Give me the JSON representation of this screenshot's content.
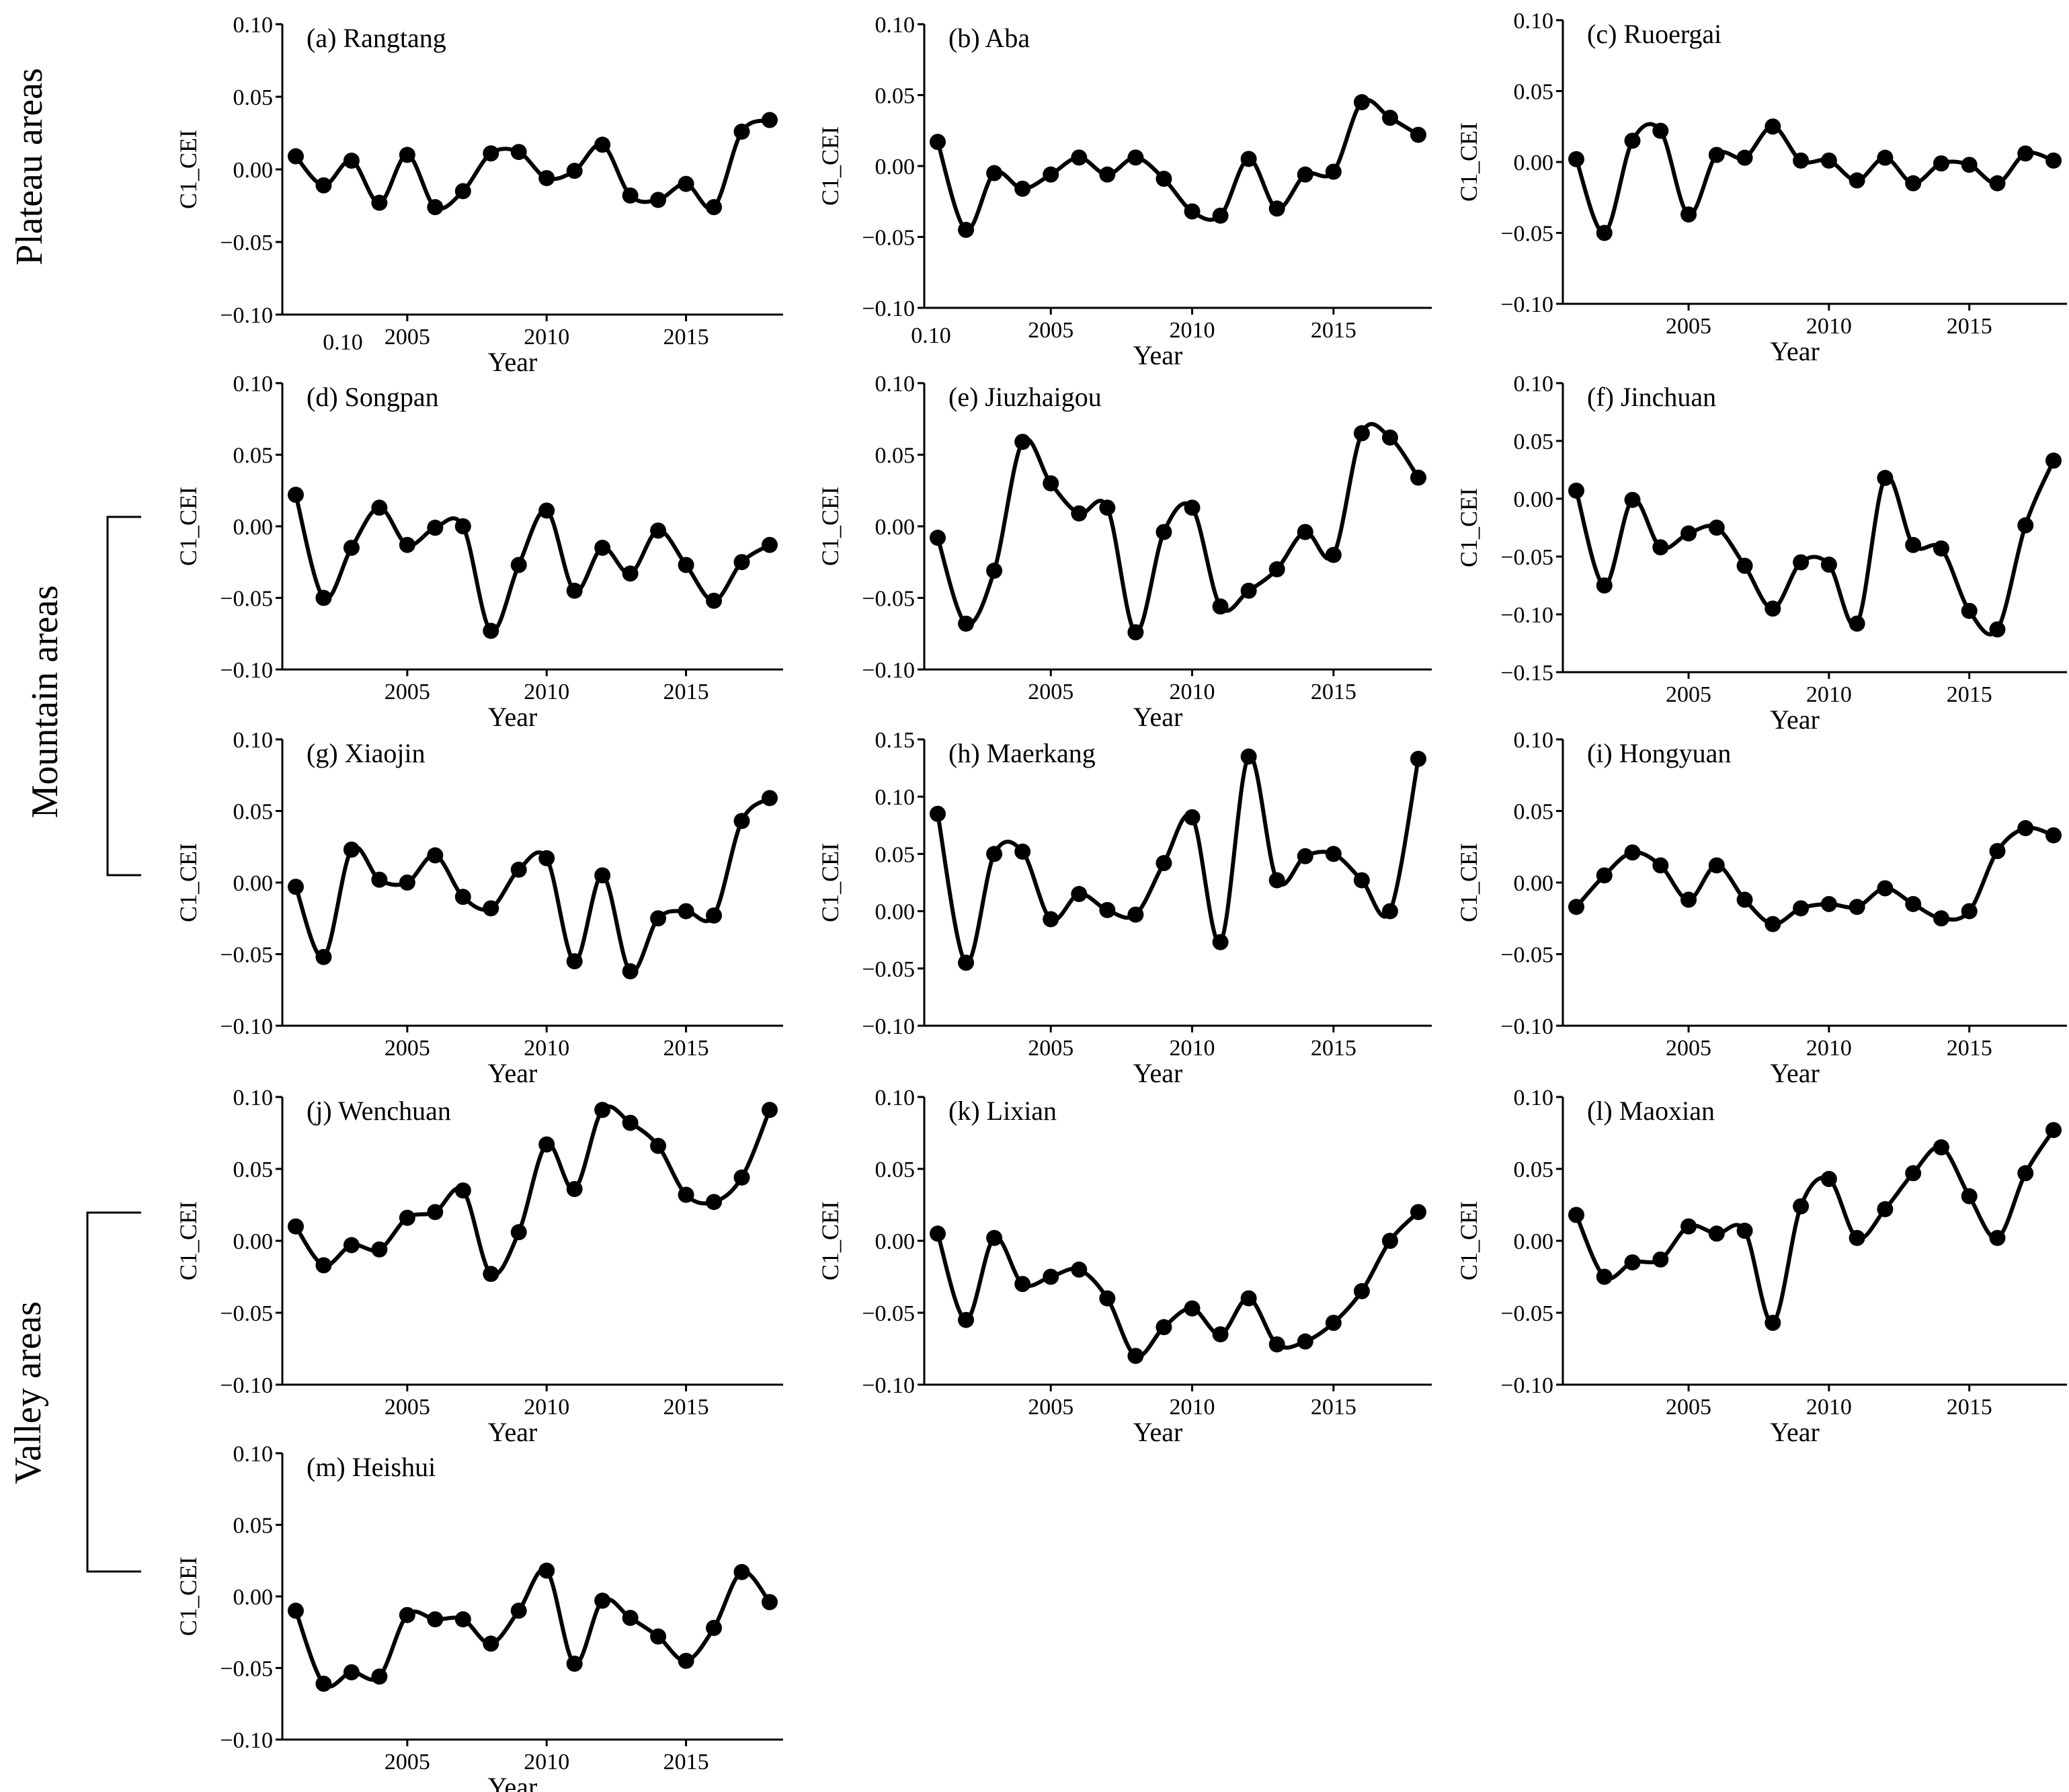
{
  "groups": [
    {
      "label": "Plateau areas"
    },
    {
      "label": "Mountain areas"
    },
    {
      "label": "Valley areas"
    }
  ],
  "chart_data": [
    {
      "type": "line",
      "title": "(a) Rangtang",
      "xlabel": "Year",
      "ylabel": "C1_CEI",
      "xlim": [
        2001,
        2018
      ],
      "ylim": [
        -0.1,
        0.1
      ],
      "yticks": [
        "0.10",
        "0.05",
        "0.00",
        "-0.05",
        "-0.10"
      ],
      "xticks": [
        "2005",
        "2010",
        "2015"
      ],
      "stray_label": "0.10",
      "x": [
        2001,
        2002,
        2003,
        2004,
        2005,
        2006,
        2007,
        2008,
        2009,
        2010,
        2011,
        2012,
        2013,
        2014,
        2015,
        2016,
        2017,
        2018
      ],
      "values": [
        0.009,
        -0.011,
        0.006,
        -0.023,
        0.01,
        -0.026,
        -0.015,
        0.011,
        0.012,
        -0.006,
        -0.001,
        0.017,
        -0.018,
        -0.021,
        -0.01,
        -0.026,
        0.026,
        0.034
      ]
    },
    {
      "type": "line",
      "title": "(b) Aba",
      "xlabel": "Year",
      "ylabel": "C1_CEI",
      "xlim": [
        2001,
        2018
      ],
      "ylim": [
        -0.1,
        0.1
      ],
      "yticks": [
        "0.10",
        "0.05",
        "0.00",
        "-0.05",
        "-0.10"
      ],
      "xticks": [
        "2005",
        "2010",
        "2015"
      ],
      "stray_label": "0.10",
      "x": [
        2001,
        2002,
        2003,
        2004,
        2005,
        2006,
        2007,
        2008,
        2009,
        2010,
        2011,
        2012,
        2013,
        2014,
        2015,
        2016,
        2017,
        2018
      ],
      "values": [
        0.017,
        -0.045,
        -0.005,
        -0.016,
        -0.006,
        0.006,
        -0.006,
        0.006,
        -0.009,
        -0.032,
        -0.035,
        0.005,
        -0.03,
        -0.006,
        -0.004,
        0.045,
        0.034,
        0.022
      ]
    },
    {
      "type": "line",
      "title": "(c) Ruoergai",
      "xlabel": "Year",
      "ylabel": "C1_CEI",
      "xlim": [
        2001,
        2018
      ],
      "ylim": [
        -0.1,
        0.1
      ],
      "yticks": [
        "0.10",
        "0.05",
        "0.00",
        "-0.05",
        "-0.10"
      ],
      "xticks": [
        "2005",
        "2010",
        "2015"
      ],
      "x": [
        2001,
        2002,
        2003,
        2004,
        2005,
        2006,
        2007,
        2008,
        2009,
        2010,
        2011,
        2012,
        2013,
        2014,
        2015,
        2016,
        2017,
        2018
      ],
      "values": [
        0.002,
        -0.05,
        0.015,
        0.022,
        -0.037,
        0.005,
        0.003,
        0.025,
        0.001,
        0.001,
        -0.013,
        0.003,
        -0.015,
        -0.001,
        -0.002,
        -0.015,
        0.006,
        0.001
      ]
    },
    {
      "type": "line",
      "title": "(d) Songpan",
      "xlabel": "Year",
      "ylabel": "C1_CEI",
      "xlim": [
        2001,
        2018
      ],
      "ylim": [
        -0.1,
        0.1
      ],
      "yticks": [
        "0.10",
        "0.05",
        "0.00",
        "-0.05",
        "-0.10"
      ],
      "xticks": [
        "2005",
        "2010",
        "2015"
      ],
      "x": [
        2001,
        2002,
        2003,
        2004,
        2005,
        2006,
        2007,
        2008,
        2009,
        2010,
        2011,
        2012,
        2013,
        2014,
        2015,
        2016,
        2017,
        2018
      ],
      "values": [
        0.022,
        -0.05,
        -0.015,
        0.013,
        -0.013,
        -0.001,
        0.0,
        -0.073,
        -0.027,
        0.011,
        -0.045,
        -0.015,
        -0.033,
        -0.003,
        -0.027,
        -0.052,
        -0.025,
        -0.013
      ]
    },
    {
      "type": "line",
      "title": "(e) Jiuzhaigou",
      "xlabel": "Year",
      "ylabel": "C1_CEI",
      "xlim": [
        2001,
        2018
      ],
      "ylim": [
        -0.1,
        0.1
      ],
      "yticks": [
        "0.10",
        "0.05",
        "0.00",
        "-0.05",
        "-0.10"
      ],
      "xticks": [
        "2005",
        "2010",
        "2015"
      ],
      "x": [
        2001,
        2002,
        2003,
        2004,
        2005,
        2006,
        2007,
        2008,
        2009,
        2010,
        2011,
        2012,
        2013,
        2014,
        2015,
        2016,
        2017,
        2018
      ],
      "values": [
        -0.008,
        -0.068,
        -0.031,
        0.059,
        0.03,
        0.009,
        0.013,
        -0.074,
        -0.004,
        0.013,
        -0.056,
        -0.045,
        -0.03,
        -0.004,
        -0.02,
        0.065,
        0.062,
        0.034
      ]
    },
    {
      "type": "line",
      "title": "(f) Jinchuan",
      "xlabel": "Year",
      "ylabel": "C1_CEI",
      "xlim": [
        2001,
        2018
      ],
      "ylim": [
        -0.15,
        0.1
      ],
      "yticks": [
        "0.10",
        "0.05",
        "0.00",
        "-0.05",
        "-0.10",
        "-0.15"
      ],
      "xticks": [
        "2005",
        "2010",
        "2015"
      ],
      "x": [
        2001,
        2002,
        2003,
        2004,
        2005,
        2006,
        2007,
        2008,
        2009,
        2010,
        2011,
        2012,
        2013,
        2014,
        2015,
        2016,
        2017,
        2018
      ],
      "values": [
        0.007,
        -0.075,
        -0.001,
        -0.042,
        -0.03,
        -0.025,
        -0.058,
        -0.095,
        -0.055,
        -0.057,
        -0.108,
        0.018,
        -0.04,
        -0.043,
        -0.097,
        -0.113,
        -0.023,
        0.033
      ]
    },
    {
      "type": "line",
      "title": "(g) Xiaojin",
      "xlabel": "Year",
      "ylabel": "C1_CEI",
      "xlim": [
        2001,
        2018
      ],
      "ylim": [
        -0.1,
        0.1
      ],
      "yticks": [
        "0.10",
        "0.05",
        "0.00",
        "-0.05",
        "-0.10"
      ],
      "xticks": [
        "2005",
        "2010",
        "2015"
      ],
      "x": [
        2001,
        2002,
        2003,
        2004,
        2005,
        2006,
        2007,
        2008,
        2009,
        2010,
        2011,
        2012,
        2013,
        2014,
        2015,
        2016,
        2017,
        2018
      ],
      "values": [
        -0.003,
        -0.052,
        0.023,
        0.002,
        0.0,
        0.019,
        -0.01,
        -0.018,
        0.009,
        0.017,
        -0.055,
        0.005,
        -0.062,
        -0.025,
        -0.02,
        -0.023,
        0.043,
        0.059
      ]
    },
    {
      "type": "line",
      "title": "(h) Maerkang",
      "xlabel": "Year",
      "ylabel": "C1_CEI",
      "xlim": [
        2001,
        2018
      ],
      "ylim": [
        -0.1,
        0.15
      ],
      "yticks": [
        "0.15",
        "0.10",
        "0.05",
        "0.00",
        "-0.05",
        "-0.10"
      ],
      "xticks": [
        "2005",
        "2010",
        "2015"
      ],
      "x": [
        2001,
        2002,
        2003,
        2004,
        2005,
        2006,
        2007,
        2008,
        2009,
        2010,
        2011,
        2012,
        2013,
        2014,
        2015,
        2016,
        2017,
        2018
      ],
      "values": [
        0.085,
        -0.045,
        0.05,
        0.052,
        -0.007,
        0.015,
        0.001,
        -0.003,
        0.042,
        0.082,
        -0.027,
        0.135,
        0.027,
        0.048,
        0.05,
        0.027,
        0.0,
        0.133
      ]
    },
    {
      "type": "line",
      "title": "(i) Hongyuan",
      "xlabel": "Year",
      "ylabel": "C1_CEI",
      "xlim": [
        2001,
        2018
      ],
      "ylim": [
        -0.1,
        0.1
      ],
      "yticks": [
        "0.10",
        "0.05",
        "0.00",
        "-0.05",
        "-0.10"
      ],
      "xticks": [
        "2005",
        "2010",
        "2015"
      ],
      "x": [
        2001,
        2002,
        2003,
        2004,
        2005,
        2006,
        2007,
        2008,
        2009,
        2010,
        2011,
        2012,
        2013,
        2014,
        2015,
        2016,
        2017,
        2018
      ],
      "values": [
        -0.017,
        0.005,
        0.021,
        0.012,
        -0.012,
        0.012,
        -0.012,
        -0.029,
        -0.018,
        -0.015,
        -0.017,
        -0.004,
        -0.015,
        -0.025,
        -0.02,
        0.022,
        0.038,
        0.033
      ]
    },
    {
      "type": "line",
      "title": "(j) Wenchuan",
      "xlabel": "Year",
      "ylabel": "C1_CEI",
      "xlim": [
        2001,
        2018
      ],
      "ylim": [
        -0.1,
        0.1
      ],
      "yticks": [
        "0.10",
        "0.05",
        "0.00",
        "-0.05",
        "-0.10"
      ],
      "xticks": [
        "2005",
        "2010",
        "2015"
      ],
      "x": [
        2001,
        2002,
        2003,
        2004,
        2005,
        2006,
        2007,
        2008,
        2009,
        2010,
        2011,
        2012,
        2013,
        2014,
        2015,
        2016,
        2017,
        2018
      ],
      "values": [
        0.01,
        -0.017,
        -0.003,
        -0.006,
        0.016,
        0.02,
        0.035,
        -0.023,
        0.006,
        0.067,
        0.036,
        0.091,
        0.082,
        0.066,
        0.032,
        0.027,
        0.044,
        0.091
      ]
    },
    {
      "type": "line",
      "title": "(k) Lixian",
      "xlabel": "Year",
      "ylabel": "C1_CEI",
      "xlim": [
        2001,
        2018
      ],
      "ylim": [
        -0.1,
        0.1
      ],
      "yticks": [
        "0.10",
        "0.05",
        "0.00",
        "-0.05",
        "-0.10"
      ],
      "xticks": [
        "2005",
        "2010",
        "2015"
      ],
      "x": [
        2001,
        2002,
        2003,
        2004,
        2005,
        2006,
        2007,
        2008,
        2009,
        2010,
        2011,
        2012,
        2013,
        2014,
        2015,
        2016,
        2017,
        2018
      ],
      "values": [
        0.005,
        -0.055,
        0.002,
        -0.03,
        -0.025,
        -0.02,
        -0.04,
        -0.08,
        -0.06,
        -0.047,
        -0.065,
        -0.04,
        -0.072,
        -0.07,
        -0.057,
        -0.035,
        0.0,
        0.02
      ]
    },
    {
      "type": "line",
      "title": "(l) Maoxian",
      "xlabel": "Year",
      "ylabel": "C1_CEI",
      "xlim": [
        2001,
        2018
      ],
      "ylim": [
        -0.1,
        0.1
      ],
      "yticks": [
        "0.10",
        "0.05",
        "0.00",
        "-0.05",
        "-0.10"
      ],
      "xticks": [
        "2005",
        "2010",
        "2015"
      ],
      "x": [
        2001,
        2002,
        2003,
        2004,
        2005,
        2006,
        2007,
        2008,
        2009,
        2010,
        2011,
        2012,
        2013,
        2014,
        2015,
        2016,
        2017,
        2018
      ],
      "values": [
        0.018,
        -0.025,
        -0.015,
        -0.013,
        0.01,
        0.005,
        0.007,
        -0.057,
        0.024,
        0.043,
        0.002,
        0.022,
        0.047,
        0.065,
        0.031,
        0.002,
        0.047,
        0.077
      ]
    },
    {
      "type": "line",
      "title": "(m) Heishui",
      "xlabel": "Year",
      "ylabel": "C1_CEI",
      "xlim": [
        2001,
        2018
      ],
      "ylim": [
        -0.1,
        0.1
      ],
      "yticks": [
        "0.10",
        "0.05",
        "0.00",
        "-0.05",
        "-0.10"
      ],
      "xticks": [
        "2005",
        "2010",
        "2015"
      ],
      "x": [
        2001,
        2002,
        2003,
        2004,
        2005,
        2006,
        2007,
        2008,
        2009,
        2010,
        2011,
        2012,
        2013,
        2014,
        2015,
        2016,
        2017,
        2018
      ],
      "values": [
        -0.01,
        -0.061,
        -0.053,
        -0.056,
        -0.013,
        -0.016,
        -0.016,
        -0.033,
        -0.01,
        0.018,
        -0.047,
        -0.003,
        -0.015,
        -0.028,
        -0.045,
        -0.022,
        0.017,
        -0.004
      ]
    }
  ]
}
